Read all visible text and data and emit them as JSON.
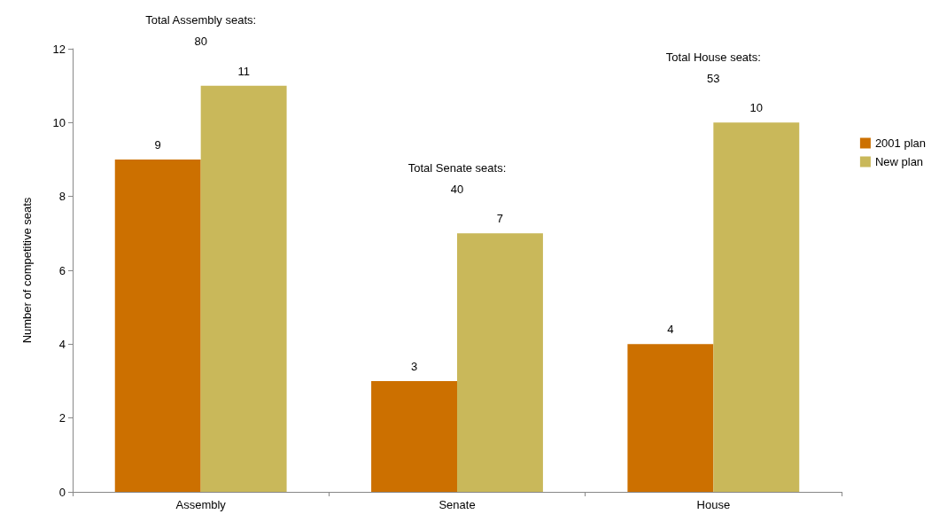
{
  "chart_data": {
    "type": "bar",
    "ylabel": "Number of competitive seats",
    "categories": [
      "Assembly",
      "Senate",
      "House"
    ],
    "series": [
      {
        "name": "2001 plan",
        "color": "#cc7000",
        "values": [
          9,
          3,
          4
        ]
      },
      {
        "name": "New plan",
        "color": "#c9b85a",
        "values": [
          11,
          7,
          10
        ]
      }
    ],
    "ylim": [
      0,
      12
    ],
    "yticks": [
      0,
      2,
      4,
      6,
      8,
      10,
      12
    ],
    "grid": false,
    "legend": "right",
    "data_labels": true,
    "annotations": [
      "Total Assembly seats:\n80",
      "Total Senate seats:\n40",
      "Total House seats:\n53"
    ]
  }
}
